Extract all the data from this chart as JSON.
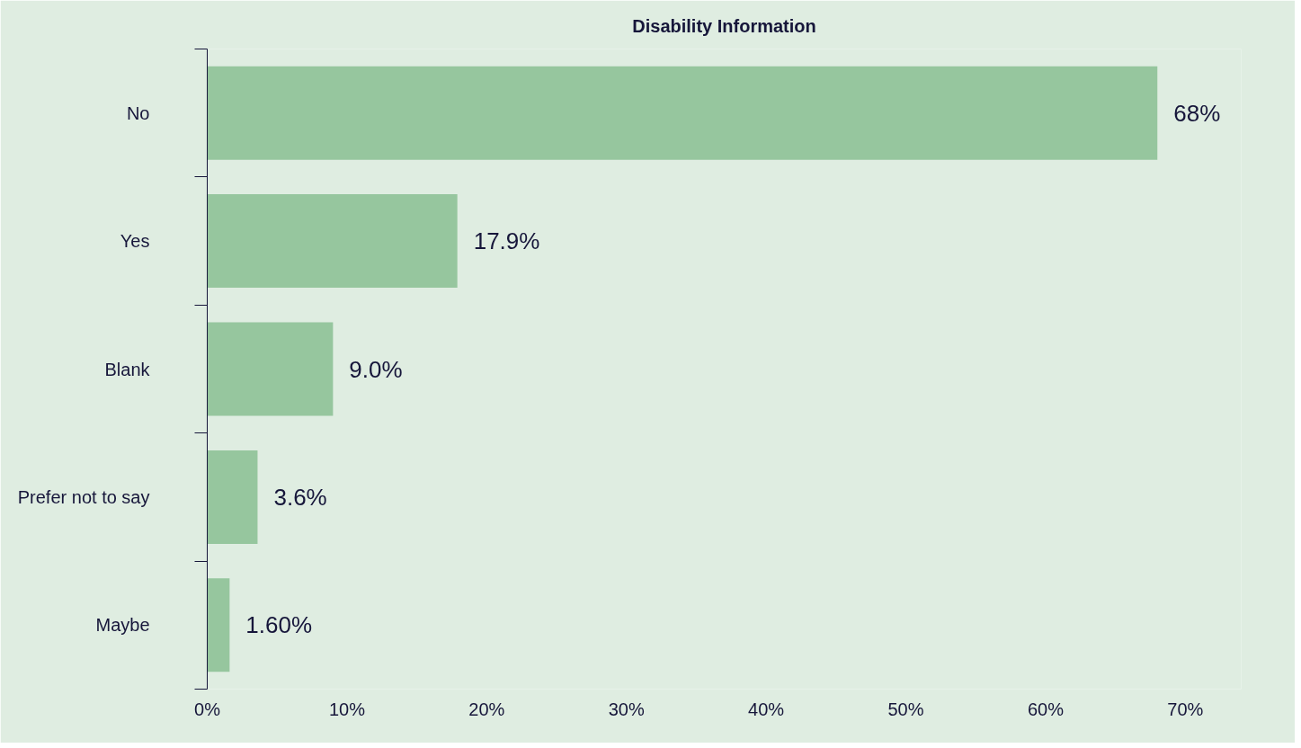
{
  "chart_data": {
    "type": "bar",
    "orientation": "horizontal",
    "title": "Disability Information",
    "categories": [
      "No",
      "Yes",
      "Blank",
      "Prefer not to say",
      "Maybe"
    ],
    "values": [
      68,
      17.9,
      9.0,
      3.6,
      1.6
    ],
    "value_labels": [
      "68%",
      "17.9%",
      "9.0%",
      "3.6%",
      "1.60%"
    ],
    "color": "#96c69e",
    "xlim": [
      0,
      74
    ],
    "xticks": [
      {
        "value": 0,
        "label": "0%"
      },
      {
        "value": 10,
        "label": "10%"
      },
      {
        "value": 20,
        "label": "20%"
      },
      {
        "value": 30,
        "label": "30%"
      },
      {
        "value": 40,
        "label": "40%"
      },
      {
        "value": 50,
        "label": "50%"
      },
      {
        "value": 60,
        "label": "60%"
      },
      {
        "value": 70,
        "label": "70%"
      }
    ],
    "grid": false
  }
}
